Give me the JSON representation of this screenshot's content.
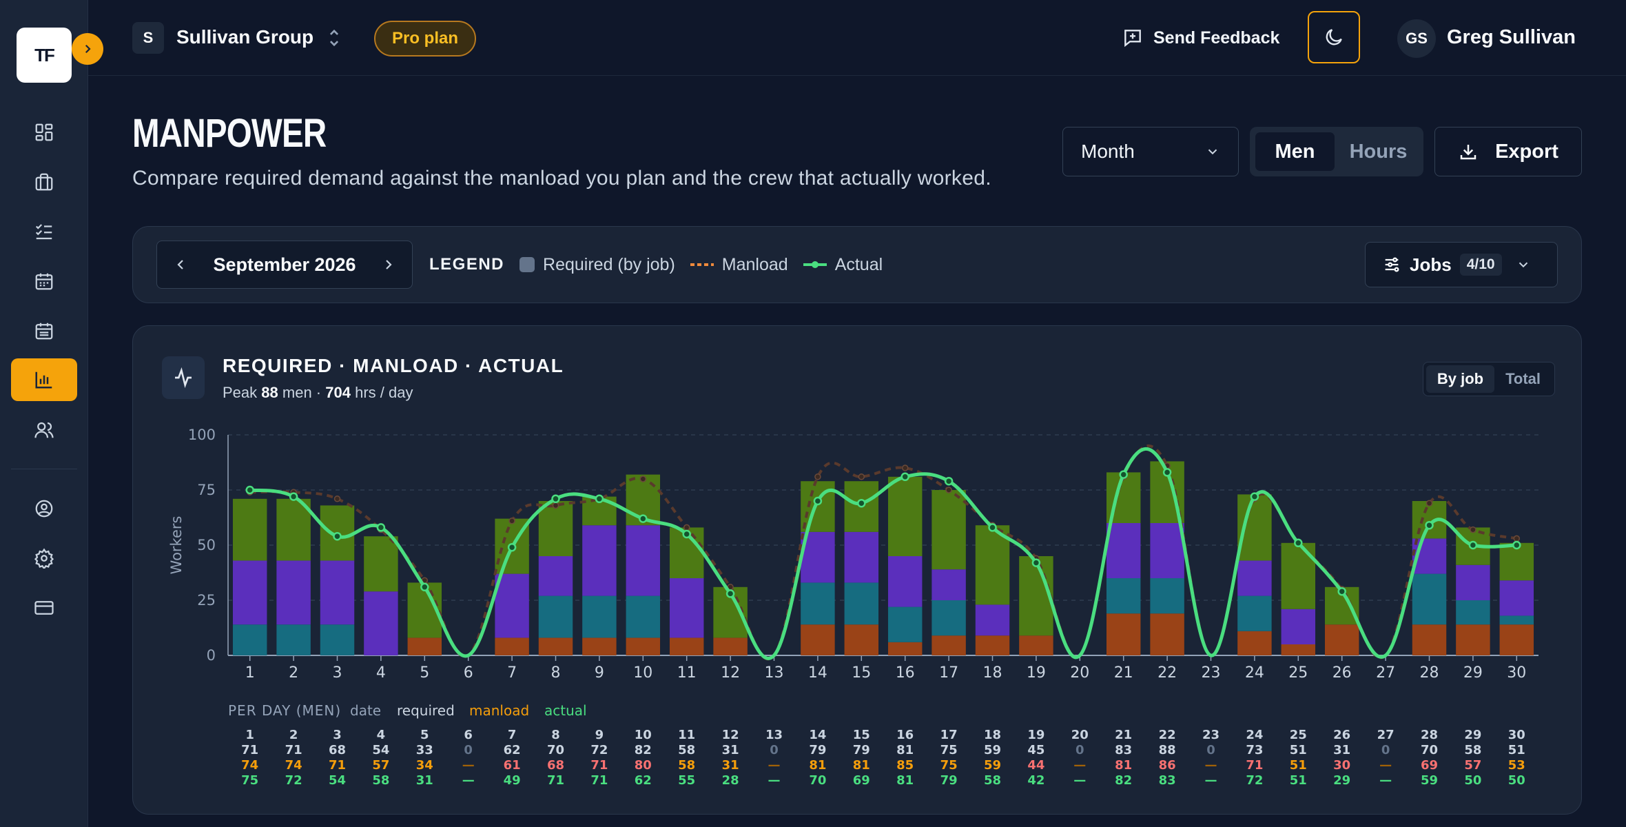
{
  "sidebar": {
    "logo": "TF",
    "icons": [
      "dashboard-icon",
      "briefcase-icon",
      "checklist-icon",
      "calendar-icon",
      "calendar-alt-icon",
      "chart-icon",
      "users-icon",
      "account-icon",
      "gear-icon",
      "card-icon"
    ],
    "active_item": "chart-icon"
  },
  "topbar": {
    "org_initial": "S",
    "org_name": "Sullivan Group",
    "plan": "Pro plan",
    "feedback": "Send Feedback",
    "user_initials": "GS",
    "user_name": "Greg Sullivan"
  },
  "header": {
    "title": "MANPOWER",
    "subtitle": "Compare required demand against the manload you plan and the crew that actually worked.",
    "period_select": "Month",
    "unit_options": [
      "Men",
      "Hours"
    ],
    "unit_selected": "Men",
    "export": "Export"
  },
  "filters": {
    "month": "September 2026",
    "legend_title": "LEGEND",
    "legend_required": "Required (by job)",
    "legend_manload": "Manload",
    "legend_actual": "Actual",
    "jobs_label": "Jobs",
    "jobs_count": "4/10"
  },
  "card": {
    "title": "REQUIRED · MANLOAD · ACTUAL",
    "peak_prefix": "Peak",
    "peak_men": "88",
    "peak_men_unit": "men ·",
    "peak_hrs": "704",
    "peak_hrs_unit": "hrs / day",
    "view_options": [
      "By job",
      "Total"
    ],
    "view_selected": "By job"
  },
  "colors": {
    "job_colors": [
      "#9a4317",
      "#166c80",
      "#5b2fbc",
      "#4d7a14"
    ],
    "manload": "#f08a3c",
    "actual": "#4ade80",
    "accent": "#f5a30b"
  },
  "chart_data": {
    "type": "bar",
    "ylabel": "Workers",
    "ylim": [
      0,
      100
    ],
    "yticks": [
      0,
      25,
      50,
      75,
      100
    ],
    "categories": [
      "1",
      "2",
      "3",
      "4",
      "5",
      "6",
      "7",
      "8",
      "9",
      "10",
      "11",
      "12",
      "13",
      "14",
      "15",
      "16",
      "17",
      "18",
      "19",
      "20",
      "21",
      "22",
      "23",
      "24",
      "25",
      "26",
      "27",
      "28",
      "29",
      "30"
    ],
    "series": [
      {
        "values": [
          0,
          0,
          0,
          0,
          8,
          0,
          8,
          8,
          8,
          8,
          8,
          8,
          0,
          14,
          14,
          6,
          9,
          9,
          9,
          0,
          19,
          19,
          0,
          11,
          5,
          14,
          0,
          14,
          14,
          14
        ]
      },
      {
        "values": [
          14,
          14,
          14,
          0,
          0,
          0,
          0,
          19,
          19,
          19,
          0,
          0,
          0,
          19,
          19,
          16,
          16,
          0,
          0,
          0,
          16,
          16,
          0,
          16,
          0,
          0,
          0,
          23,
          11,
          4
        ]
      },
      {
        "values": [
          29,
          29,
          29,
          29,
          0,
          0,
          29,
          18,
          32,
          32,
          27,
          0,
          0,
          23,
          23,
          23,
          14,
          14,
          0,
          0,
          25,
          25,
          0,
          16,
          16,
          0,
          0,
          16,
          16,
          16
        ]
      },
      {
        "values": [
          28,
          28,
          25,
          25,
          25,
          0,
          25,
          25,
          13,
          23,
          23,
          23,
          0,
          23,
          23,
          36,
          36,
          36,
          36,
          0,
          23,
          28,
          0,
          30,
          30,
          17,
          0,
          17,
          17,
          17
        ]
      }
    ],
    "required": [
      71,
      71,
      68,
      54,
      33,
      0,
      62,
      70,
      72,
      82,
      58,
      31,
      0,
      79,
      79,
      81,
      75,
      59,
      45,
      0,
      83,
      88,
      0,
      73,
      51,
      31,
      0,
      70,
      58,
      51
    ],
    "manload": [
      74,
      74,
      71,
      57,
      34,
      null,
      61,
      68,
      71,
      80,
      58,
      31,
      null,
      81,
      81,
      85,
      75,
      59,
      44,
      null,
      81,
      86,
      null,
      71,
      51,
      30,
      null,
      69,
      57,
      53
    ],
    "actual": [
      75,
      72,
      54,
      58,
      31,
      null,
      49,
      71,
      71,
      62,
      55,
      28,
      null,
      70,
      69,
      81,
      79,
      58,
      42,
      null,
      82,
      83,
      null,
      72,
      51,
      29,
      null,
      59,
      50,
      50
    ]
  },
  "table": {
    "title": "PER DAY (MEN)",
    "col_date": "date",
    "col_required": "required",
    "col_manload": "manload",
    "col_actual": "actual",
    "dash": "—"
  }
}
